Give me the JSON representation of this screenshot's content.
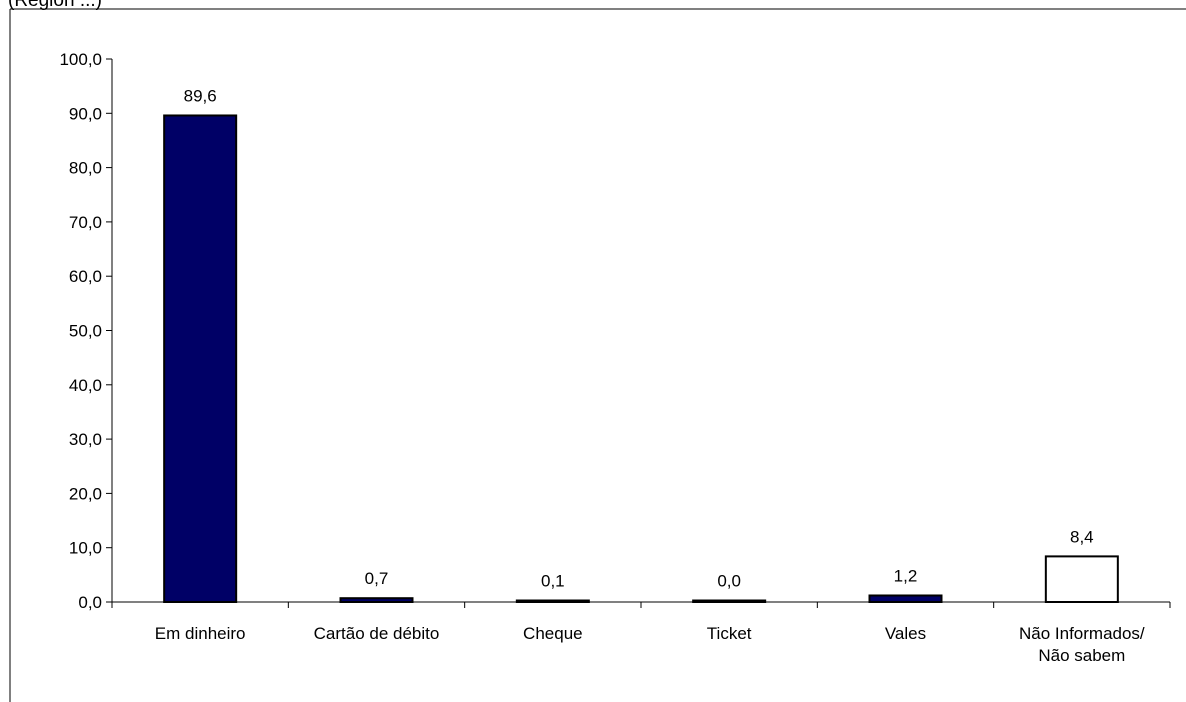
{
  "caption": "(Region ...)",
  "chart_data": {
    "type": "bar",
    "categories": [
      "Em dinheiro",
      "Cartão de débito",
      "Cheque",
      "Ticket",
      "Vales",
      "Não Informados/\nNão sabem"
    ],
    "values": [
      89.6,
      0.7,
      0.1,
      0.0,
      1.2,
      8.4
    ],
    "value_labels": [
      "89,6",
      "0,7",
      "0,1",
      "0,0",
      "1,2",
      "8,4"
    ],
    "ylim": [
      0,
      100
    ],
    "yticks": [
      0,
      10,
      20,
      30,
      40,
      50,
      60,
      70,
      80,
      90,
      100
    ],
    "ytick_labels": [
      "0,0",
      "10,0",
      "20,0",
      "30,0",
      "40,0",
      "50,0",
      "60,0",
      "70,0",
      "80,0",
      "90,0",
      "100,0"
    ],
    "colors": [
      "#000066",
      "#000066",
      "#000066",
      "#000066",
      "#000066",
      "#ffffff"
    ],
    "grid": false,
    "legend": "none"
  }
}
